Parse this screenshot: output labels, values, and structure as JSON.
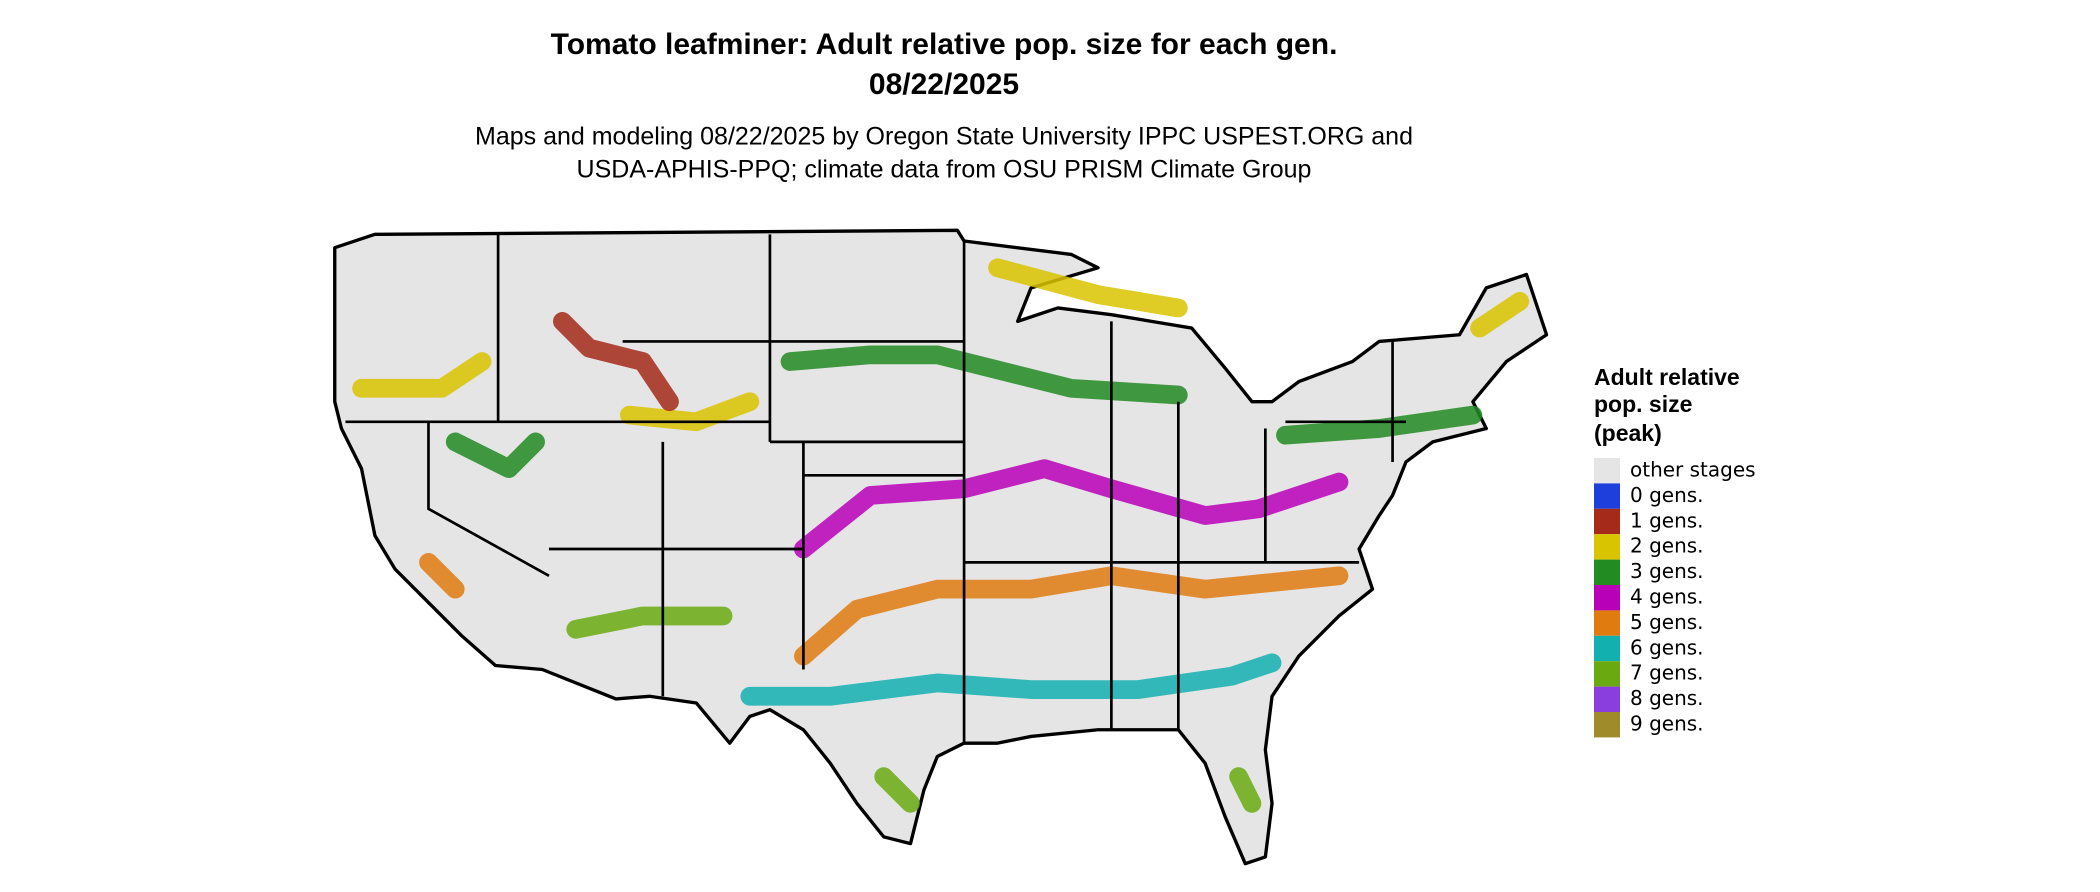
{
  "title": {
    "line1": "Tomato leafminer: Adult relative pop. size for each gen.",
    "line2": "08/22/2025"
  },
  "subtitle": {
    "line1": "Maps and modeling 08/22/2025 by Oregon State University IPPC USPEST.ORG and",
    "line2": "USDA-APHIS-PPQ; climate data from OSU PRISM Climate Group"
  },
  "legend": {
    "title": [
      "Adult relative",
      "pop. size",
      "(peak)"
    ],
    "entries": [
      {
        "label": "other stages",
        "color": "#e5e5e5"
      },
      {
        "label": "0 gens.",
        "color": "#1f3fdd"
      },
      {
        "label": "1 gens.",
        "color": "#a52a1a"
      },
      {
        "label": "2 gens.",
        "color": "#d9c400"
      },
      {
        "label": "3 gens.",
        "color": "#228b22"
      },
      {
        "label": "4 gens.",
        "color": "#b800b8"
      },
      {
        "label": "5 gens.",
        "color": "#e07b10"
      },
      {
        "label": "6 gens.",
        "color": "#13b0b0"
      },
      {
        "label": "7 gens.",
        "color": "#6aaa10"
      },
      {
        "label": "8 gens.",
        "color": "#8a3fdd"
      },
      {
        "label": "9 gens.",
        "color": "#a08b2a"
      }
    ]
  }
}
